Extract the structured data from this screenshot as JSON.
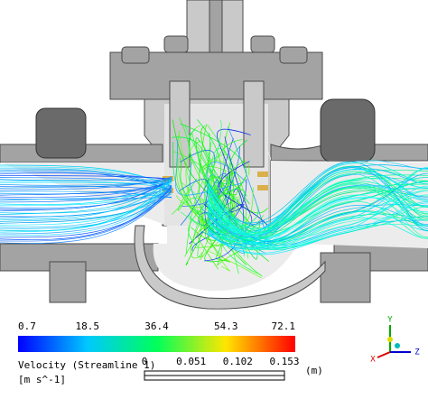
{
  "legend": {
    "ticks": [
      0.7,
      18.5,
      36.4,
      54.3,
      72.1
    ],
    "title": "Velocity (Streamline 1)",
    "unit": "[m s^-1]"
  },
  "scale_bar": {
    "ticks": [
      0,
      0.051,
      0.102,
      0.153
    ],
    "unit": "(m)"
  },
  "triad": {
    "x": "X",
    "y": "Y",
    "z": "Z"
  }
}
